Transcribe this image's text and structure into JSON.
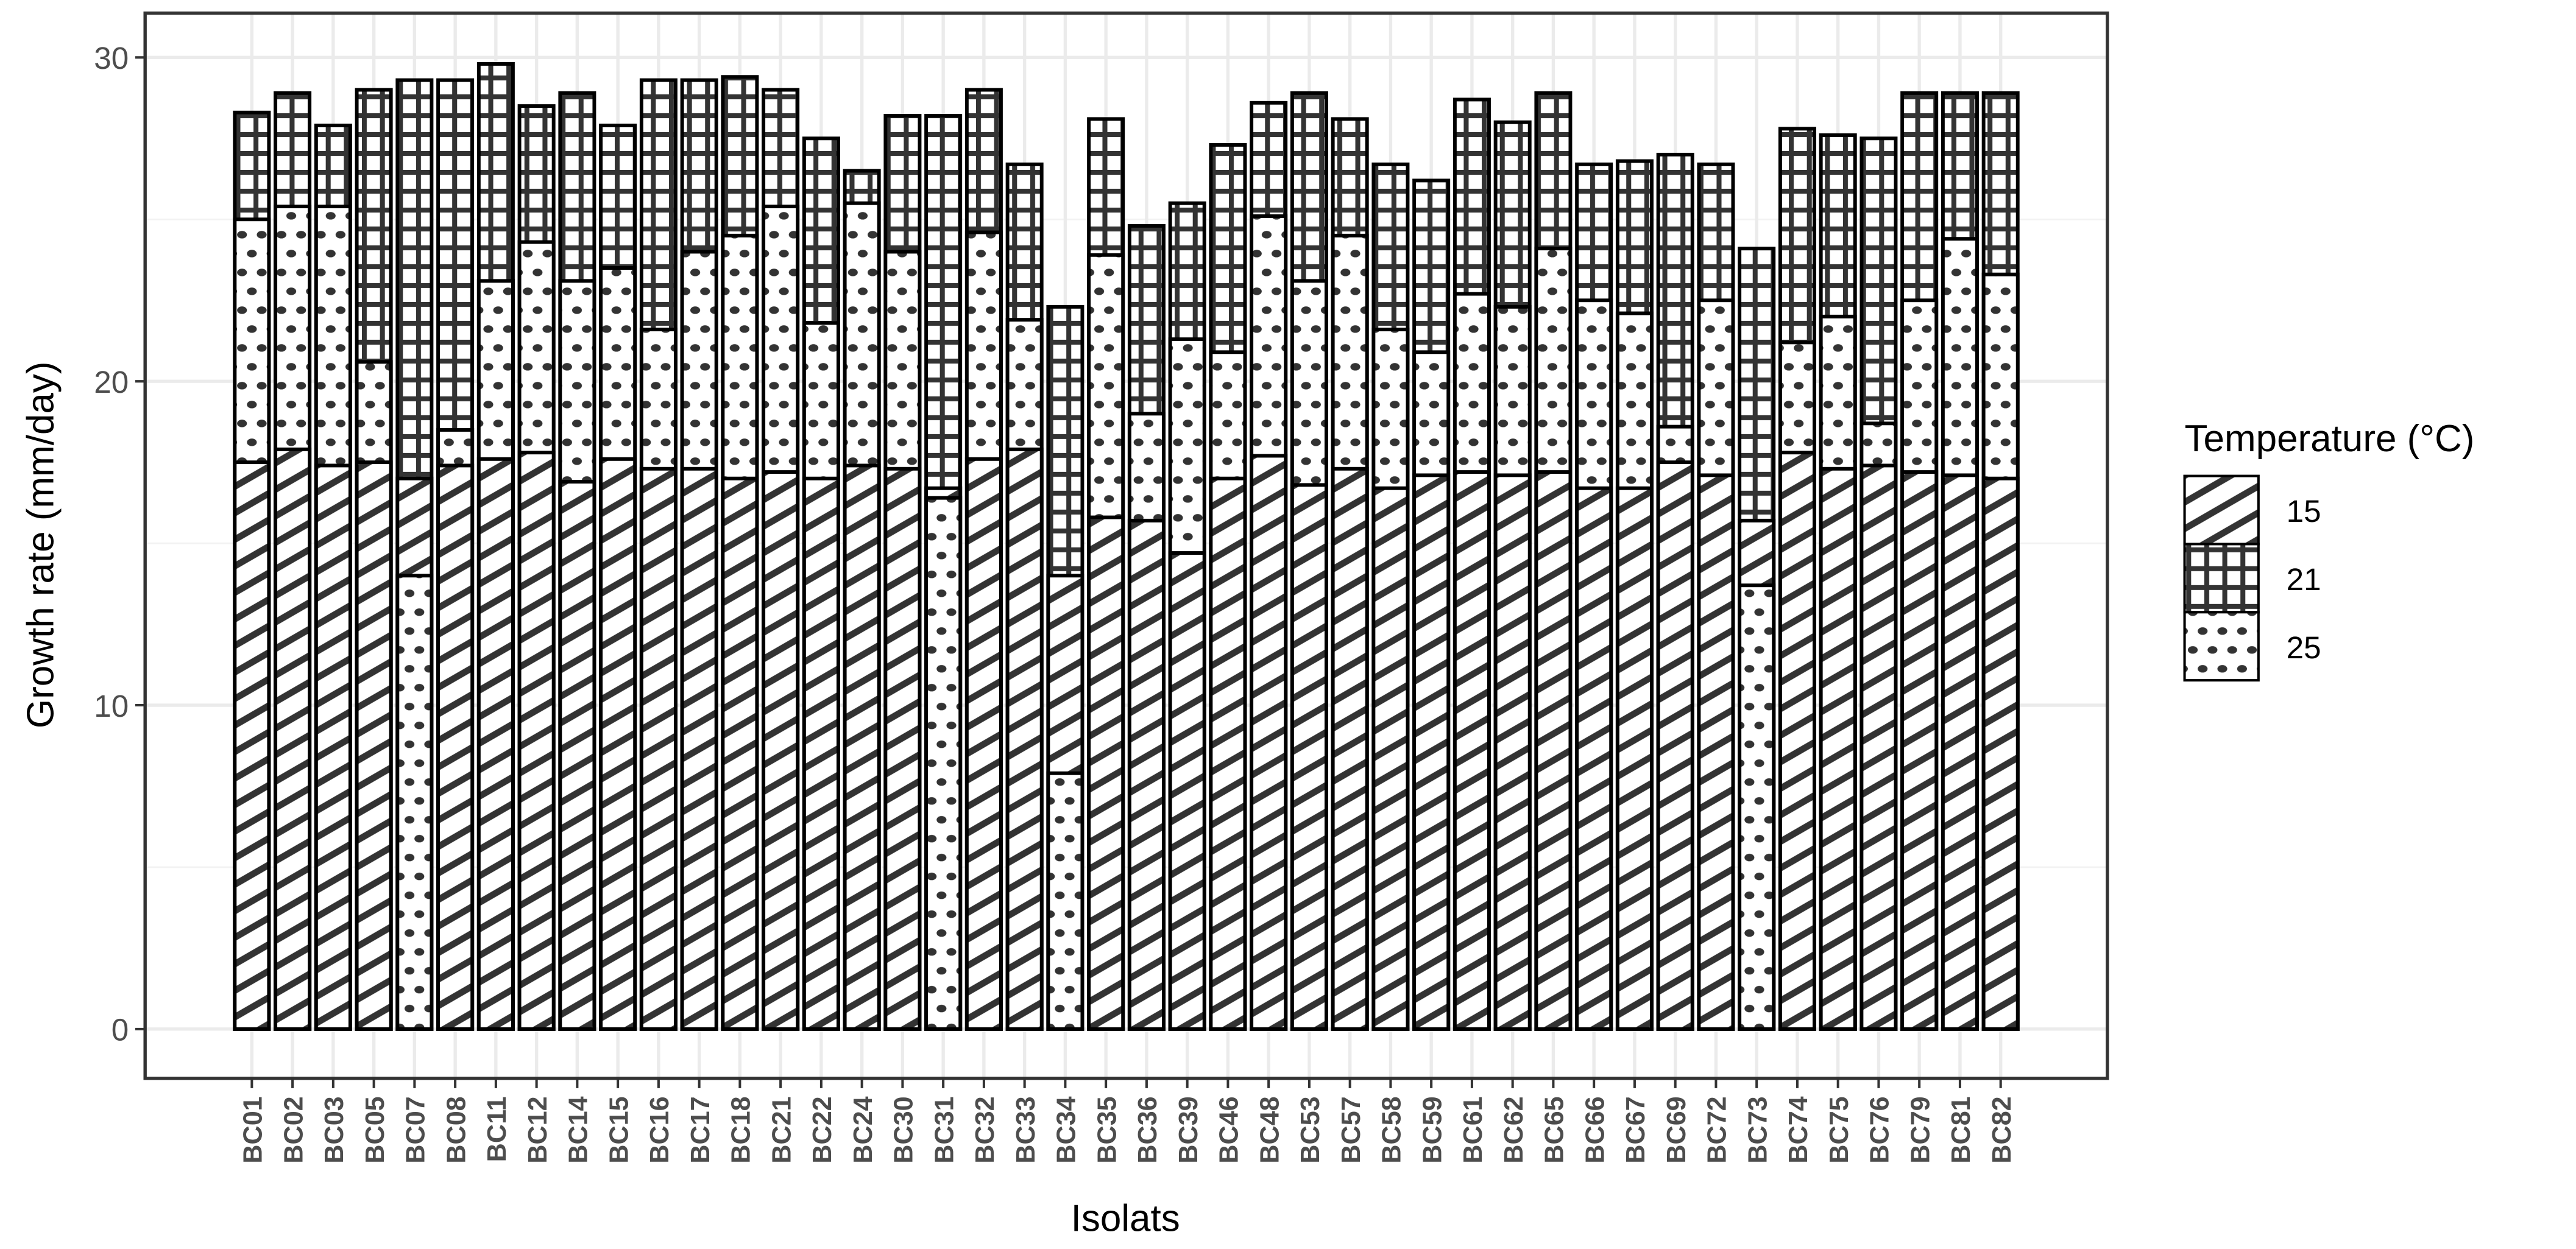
{
  "chart_data": {
    "type": "bar",
    "bar_mode": "overlaid",
    "xlabel": "Isolats",
    "ylabel": "Growth rate (mm/day)",
    "ylim": [
      0,
      30
    ],
    "yticks": [
      0,
      10,
      20,
      30
    ],
    "grid": true,
    "legend": {
      "title": "Temperature (°C)",
      "placement": "right",
      "entries": [
        "15",
        "21",
        "25"
      ]
    },
    "patterns": {
      "15": "diagonal-stripes",
      "21": "crosshatch-grid",
      "25": "dots"
    },
    "categories": [
      "BC01",
      "BC02",
      "BC03",
      "BC05",
      "BC07",
      "BC08",
      "BC11",
      "BC12",
      "BC14",
      "BC15",
      "BC16",
      "BC17",
      "BC18",
      "BC21",
      "BC22",
      "BC24",
      "BC30",
      "BC31",
      "BC32",
      "BC33",
      "BC34",
      "BC35",
      "BC36",
      "BC39",
      "BC46",
      "BC48",
      "BC53",
      "BC57",
      "BC58",
      "BC59",
      "BC61",
      "BC62",
      "BC65",
      "BC66",
      "BC67",
      "BC69",
      "BC72",
      "BC73",
      "BC74",
      "BC75",
      "BC76",
      "BC79",
      "BC81",
      "BC82"
    ],
    "series": [
      {
        "name": "15",
        "values": [
          17.5,
          17.9,
          17.4,
          17.5,
          17.0,
          17.4,
          17.6,
          17.8,
          16.9,
          17.6,
          17.3,
          17.3,
          17.0,
          17.2,
          17.0,
          17.4,
          17.3,
          16.7,
          17.6,
          17.9,
          14.0,
          15.8,
          15.7,
          14.7,
          17.0,
          17.7,
          16.8,
          17.3,
          16.7,
          17.1,
          17.2,
          17.1,
          17.2,
          16.7,
          16.7,
          17.5,
          17.1,
          15.7,
          17.8,
          17.3,
          17.4,
          17.2,
          17.1,
          17.0
        ]
      },
      {
        "name": "21",
        "values": [
          28.3,
          28.9,
          27.9,
          29.0,
          29.3,
          29.3,
          29.8,
          28.5,
          28.9,
          27.9,
          29.3,
          29.3,
          29.4,
          29.0,
          27.5,
          26.5,
          28.2,
          28.2,
          29.0,
          26.7,
          22.3,
          28.1,
          24.8,
          25.5,
          27.3,
          28.6,
          28.9,
          28.1,
          26.7,
          26.2,
          28.7,
          28.0,
          28.9,
          26.7,
          26.8,
          27.0,
          26.7,
          24.1,
          27.8,
          27.6,
          27.5,
          28.9,
          28.9,
          28.9
        ]
      },
      {
        "name": "25",
        "values": [
          25.0,
          25.4,
          25.4,
          20.6,
          14.0,
          18.5,
          23.1,
          24.3,
          23.1,
          23.5,
          21.6,
          24.0,
          24.5,
          25.4,
          21.8,
          25.5,
          24.0,
          16.4,
          24.6,
          21.9,
          7.9,
          23.9,
          19.0,
          21.3,
          20.9,
          25.1,
          23.1,
          24.5,
          21.6,
          20.9,
          22.7,
          22.3,
          24.1,
          22.5,
          22.1,
          18.6,
          22.5,
          13.7,
          21.2,
          22.0,
          18.7,
          22.5,
          24.4,
          23.3
        ]
      }
    ]
  }
}
